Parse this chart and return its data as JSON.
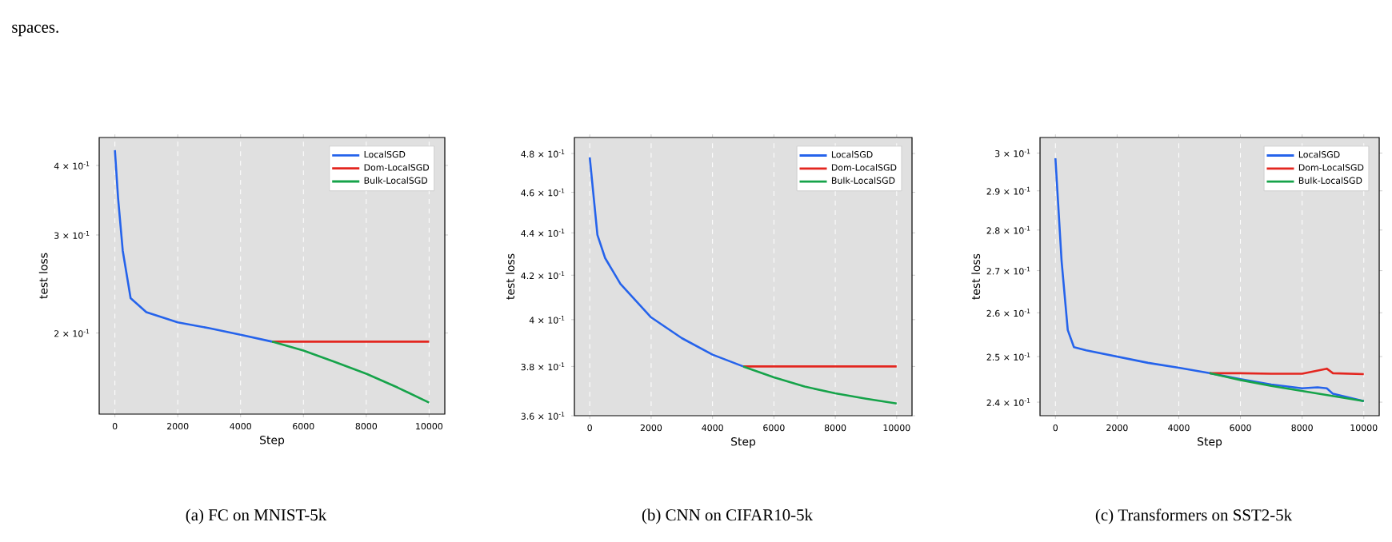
{
  "chart_data": [
    {
      "type": "line",
      "xlabel": "Step",
      "ylabel": "test loss",
      "log": true,
      "grid": "x",
      "legend": "top right",
      "xlim": [
        -500,
        10500
      ],
      "ylim": [
        0.143,
        0.449
      ],
      "xticks": [
        0,
        2000,
        4000,
        6000,
        8000,
        10000
      ],
      "yticks": [
        {
          "value": 0.2,
          "label": "2 × 10$^{-1}$"
        },
        {
          "value": 0.3,
          "label": "3 × 10$^{-1}$"
        },
        {
          "value": 0.4,
          "label": "4 × 10$^{-1}$"
        }
      ],
      "series": [
        {
          "name": "LocalSGD",
          "color": "#2563eb",
          "x": [
            0,
            100,
            250,
            500,
            1000,
            2000,
            3000,
            4000,
            5000
          ],
          "values": [
            0.426,
            0.35,
            0.281,
            0.231,
            0.218,
            0.209,
            0.204,
            0.1986,
            0.193
          ]
        },
        {
          "name": "Dom-LocalSGD",
          "color": "#e3261f",
          "x": [
            5000,
            10000
          ],
          "values": [
            0.193,
            0.193
          ]
        },
        {
          "name": "Bulk-LocalSGD",
          "color": "#16a34a",
          "x": [
            5000,
            6000,
            7000,
            8000,
            9000,
            10000
          ],
          "values": [
            0.193,
            0.186,
            0.1775,
            0.169,
            0.1596,
            0.15
          ]
        }
      ],
      "annotations": [
        "spaces.",
        "(a) FC on MNIST-5k"
      ]
    },
    {
      "type": "line",
      "xlabel": "Step",
      "ylabel": "test loss",
      "log": true,
      "grid": "x",
      "legend": "top right",
      "xlim": [
        -500,
        10500
      ],
      "ylim": [
        0.36,
        0.4885
      ],
      "xticks": [
        0,
        2000,
        4000,
        6000,
        8000,
        10000
      ],
      "yticks": [
        {
          "value": 0.36,
          "label": "3.6 × 10$^{-1}$"
        },
        {
          "value": 0.38,
          "label": "3.8 × 10$^{-1}$"
        },
        {
          "value": 0.4,
          "label": "4 × 10$^{-1}$"
        },
        {
          "value": 0.42,
          "label": "4.2 × 10$^{-1}$"
        },
        {
          "value": 0.44,
          "label": "4.4 × 10$^{-1}$"
        },
        {
          "value": 0.46,
          "label": "4.6 × 10$^{-1}$"
        },
        {
          "value": 0.48,
          "label": "4.8 × 10$^{-1}$"
        }
      ],
      "series": [
        {
          "name": "LocalSGD",
          "color": "#2563eb",
          "x": [
            0,
            250,
            500,
            1000,
            2000,
            3000,
            4000,
            5000
          ],
          "values": [
            0.478,
            0.439,
            0.428,
            0.416,
            0.401,
            0.392,
            0.385,
            0.38
          ]
        },
        {
          "name": "Dom-LocalSGD",
          "color": "#e3261f",
          "x": [
            5000,
            10000
          ],
          "values": [
            0.38,
            0.38
          ]
        },
        {
          "name": "Bulk-LocalSGD",
          "color": "#16a34a",
          "x": [
            5000,
            6000,
            7000,
            8000,
            9000,
            10000
          ],
          "values": [
            0.38,
            0.3755,
            0.3717,
            0.369,
            0.3668,
            0.3649
          ]
        }
      ],
      "annotations": [
        "(b) CNN on CIFAR10-5k"
      ]
    },
    {
      "type": "line",
      "xlabel": "Step",
      "ylabel": "test loss",
      "log": true,
      "grid": "x",
      "legend": "top right",
      "xlim": [
        -500,
        10500
      ],
      "ylim": [
        0.2371,
        0.3042
      ],
      "xticks": [
        0,
        2000,
        4000,
        6000,
        8000,
        10000
      ],
      "yticks": [
        {
          "value": 0.24,
          "label": "2.4 × 10$^{-1}$"
        },
        {
          "value": 0.25,
          "label": "2.5 × 10$^{-1}$"
        },
        {
          "value": 0.26,
          "label": "2.6 × 10$^{-1}$"
        },
        {
          "value": 0.27,
          "label": "2.7 × 10$^{-1}$"
        },
        {
          "value": 0.28,
          "label": "2.8 × 10$^{-1}$"
        },
        {
          "value": 0.29,
          "label": "2.9 × 10$^{-1}$"
        },
        {
          "value": 0.3,
          "label": "3 × 10$^{-1}$"
        }
      ],
      "series": [
        {
          "name": "LocalSGD",
          "color": "#2563eb",
          "x": [
            0,
            200,
            400,
            600,
            1000,
            2000,
            3000,
            4000,
            5000,
            6000,
            7000,
            8000,
            8500,
            8800,
            9000,
            10000
          ],
          "values": [
            0.2986,
            0.2723,
            0.256,
            0.2521,
            0.2514,
            0.25,
            0.2486,
            0.2475,
            0.2463,
            0.245,
            0.2438,
            0.243,
            0.2432,
            0.243,
            0.2418,
            0.2402
          ]
        },
        {
          "name": "Dom-LocalSGD",
          "color": "#e3261f",
          "x": [
            5000,
            6000,
            7000,
            8000,
            8800,
            9000,
            10000
          ],
          "values": [
            0.2463,
            0.2463,
            0.2462,
            0.2462,
            0.2473,
            0.2463,
            0.2461
          ]
        },
        {
          "name": "Bulk-LocalSGD",
          "color": "#16a34a",
          "x": [
            5000,
            6000,
            7000,
            8000,
            9000,
            10000
          ],
          "values": [
            0.2463,
            0.2448,
            0.2435,
            0.2424,
            0.2413,
            0.2402
          ]
        }
      ],
      "annotations": [
        "(c) Transformers on SST2-5k"
      ]
    }
  ]
}
